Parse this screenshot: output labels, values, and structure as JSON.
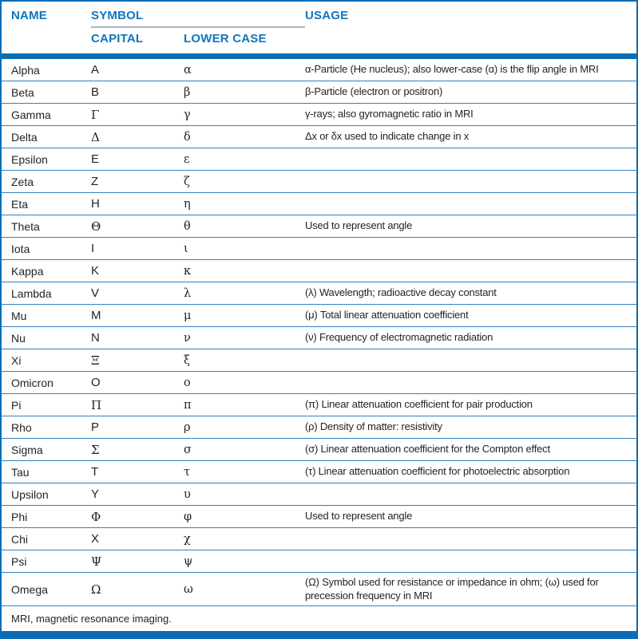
{
  "colors": {
    "blue_bar": "#0c6db6",
    "blue_header_text": "#0e76bc",
    "blue_row_separator": "#3181c1",
    "gray_symbol_underline": "#a9b8c7",
    "body_text": "#262324"
  },
  "table": {
    "columns": {
      "name": "NAME",
      "symbol": "SYMBOL",
      "capital": "CAPITAL",
      "lower_case": "LOWER CASE",
      "usage": "USAGE"
    },
    "rows": [
      {
        "name": "Alpha",
        "capital": "A",
        "lower": "α",
        "usage": "α-Particle (He nucleus); also lower-case (α) is the flip angle in MRI"
      },
      {
        "name": "Beta",
        "capital": "B",
        "lower": "β",
        "usage": "β-Particle (electron or positron)"
      },
      {
        "name": "Gamma",
        "capital": "Γ",
        "lower": "γ",
        "usage": "γ-rays; also gyromagnetic ratio in MRI"
      },
      {
        "name": "Delta",
        "capital": "Δ",
        "lower": "δ",
        "usage": "Δx or δx used to indicate change in x"
      },
      {
        "name": "Epsilon",
        "capital": "E",
        "lower": "ε",
        "usage": ""
      },
      {
        "name": "Zeta",
        "capital": "Z",
        "lower": "ζ",
        "usage": ""
      },
      {
        "name": "Eta",
        "capital": "H",
        "lower": "η",
        "usage": ""
      },
      {
        "name": "Theta",
        "capital": "Θ",
        "lower": "θ",
        "usage": "Used to represent angle"
      },
      {
        "name": "Iota",
        "capital": "I",
        "lower": "ι",
        "usage": ""
      },
      {
        "name": "Kappa",
        "capital": "K",
        "lower": "κ",
        "usage": ""
      },
      {
        "name": "Lambda",
        "capital": "V",
        "lower": "λ",
        "usage": "(λ) Wavelength; radioactive decay constant"
      },
      {
        "name": "Mu",
        "capital": "M",
        "lower": "μ",
        "usage": "(μ) Total linear attenuation coefficient"
      },
      {
        "name": "Nu",
        "capital": "N",
        "lower": "ν",
        "usage": "(ν) Frequency of electromagnetic radiation"
      },
      {
        "name": "Xi",
        "capital": "Ξ",
        "lower": "ξ",
        "usage": ""
      },
      {
        "name": "Omicron",
        "capital": "O",
        "lower": "ο",
        "usage": ""
      },
      {
        "name": "Pi",
        "capital": "Π",
        "lower": "π",
        "usage": "(π) Linear attenuation coefficient for pair production"
      },
      {
        "name": "Rho",
        "capital": "P",
        "lower": "ρ",
        "usage": "(ρ) Density of matter: resistivity"
      },
      {
        "name": "Sigma",
        "capital": "Σ",
        "lower": "σ",
        "usage": "(σ) Linear attenuation coefficient for the Compton effect"
      },
      {
        "name": "Tau",
        "capital": "T",
        "lower": "τ",
        "usage": "(τ) Linear attenuation coefficient for photoelectric absorption"
      },
      {
        "name": "Upsilon",
        "capital": "Y",
        "lower": "υ",
        "usage": ""
      },
      {
        "name": "Phi",
        "capital": "Φ",
        "lower": "φ",
        "usage": "Used to represent angle"
      },
      {
        "name": "Chi",
        "capital": "X",
        "lower": "χ",
        "usage": ""
      },
      {
        "name": "Psi",
        "capital": "Ψ",
        "lower": "ψ",
        "usage": ""
      },
      {
        "name": "Omega",
        "capital": "Ω",
        "lower": "ω",
        "usage": "(Ω) Symbol used for resistance or impedance in ohm; (ω) used for precession frequency in MRI"
      }
    ],
    "footnote": "MRI, magnetic resonance imaging."
  }
}
